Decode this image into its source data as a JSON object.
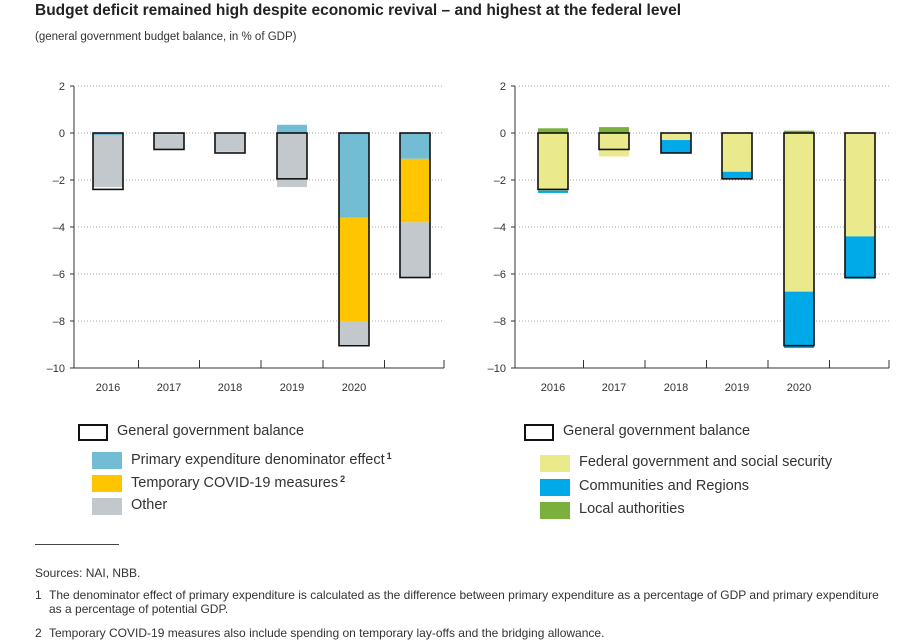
{
  "title": "Budget deficit remained high despite economic revival – and highest at the federal level",
  "subtitle": "(general government budget balance, in % of GDP)",
  "colors": {
    "denominator": "#72bcd4",
    "covid": "#ffc600",
    "other": "#c3c8cd",
    "federal": "#eaea8c",
    "communities": "#00a9e8",
    "local": "#7bb03c",
    "outline": "#111111"
  },
  "chart_data": [
    {
      "type": "bar",
      "stacked": true,
      "categories": [
        "2016",
        "2017",
        "2018",
        "2019",
        "2020",
        ""
      ],
      "ylim": [
        -10,
        2
      ],
      "yticks": [
        2,
        0,
        -2,
        -4,
        -6,
        -8,
        -10
      ],
      "ytick_labels": [
        "2",
        "0",
        "–2",
        "–4",
        "–6",
        "–8",
        "–10"
      ],
      "grid": "dotted horizontal",
      "series": [
        {
          "name": "Primary expenditure denominator effect",
          "values": [
            -0.1,
            -0.05,
            0.0,
            0.35,
            -3.6,
            -1.1
          ]
        },
        {
          "name": "Temporary COVID-19 measures",
          "values": [
            0.0,
            0.0,
            0.0,
            0.0,
            -4.4,
            -2.7
          ]
        },
        {
          "name": "Other",
          "values": [
            -2.2,
            -0.65,
            -0.8,
            -2.3,
            -1.0,
            -2.35
          ]
        }
      ],
      "balance": {
        "name": "General government balance",
        "values": [
          -2.4,
          -0.7,
          -0.85,
          -1.95,
          -9.05,
          -6.15
        ]
      }
    },
    {
      "type": "bar",
      "stacked": true,
      "categories": [
        "2016",
        "2017",
        "2018",
        "2019",
        "2020",
        ""
      ],
      "ylim": [
        -10,
        2
      ],
      "yticks": [
        2,
        0,
        -2,
        -4,
        -6,
        -8,
        -10
      ],
      "ytick_labels": [
        "2",
        "0",
        "–2",
        "–4",
        "–6",
        "–8",
        "–10"
      ],
      "grid": "dotted horizontal",
      "series": [
        {
          "name": "Federal government and social security",
          "values": [
            -2.45,
            -1.0,
            -0.3,
            -1.65,
            -6.75,
            -4.4
          ]
        },
        {
          "name": "Communities and Regions",
          "values": [
            -0.1,
            0.0,
            -0.55,
            -0.3,
            -2.4,
            -1.8
          ]
        },
        {
          "name": "Local authorities",
          "values": [
            0.2,
            0.25,
            0.0,
            0.0,
            0.1,
            0.0
          ]
        }
      ],
      "balance": {
        "name": "General government balance",
        "values": [
          -2.4,
          -0.7,
          -0.85,
          -1.95,
          -9.05,
          -6.15
        ]
      }
    }
  ],
  "legend_left": {
    "balance": "General government balance",
    "denominator": "Primary expenditure denominator effect",
    "denominator_note": "1",
    "covid": "Temporary COVID-19 measures",
    "covid_note": "2",
    "other": "Other"
  },
  "legend_right": {
    "balance": "General government balance",
    "federal": "Federal government and social security",
    "communities": "Communities and Regions",
    "local": "Local authorities"
  },
  "notes": {
    "sources": "Sources: NAI, NBB.",
    "n1_num": "1",
    "n1": "The denominator effect of primary expenditure is calculated as the difference between primary expenditure as a percentage of GDP and primary expenditure as a percentage of potential GDP.",
    "n2_num": "2",
    "n2": "Temporary COVID-19 measures also include spending on temporary lay-offs and the bridging allowance."
  }
}
